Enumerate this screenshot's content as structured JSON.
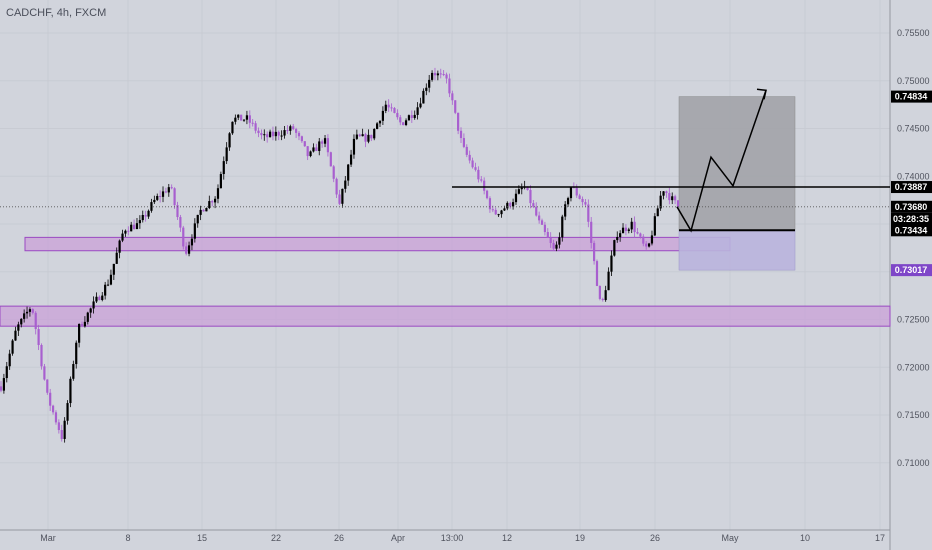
{
  "symbol_label": "CADCHF, 4h, FXCM",
  "colors": {
    "background": "#d1d4dc",
    "bull": "#000000",
    "bear": "#a85fcf",
    "zone_fill": "#c9a2d8",
    "zone_border": "#9a49c2",
    "target_fill": "#a2a3a8",
    "stop_fill": "#b9b4dd",
    "price_badge": "#000000",
    "purple_badge": "#7e46c8"
  },
  "price_badges": [
    {
      "label": "0.74834",
      "color": "black"
    },
    {
      "label": "0.73887",
      "color": "black"
    },
    {
      "label": "0.73680",
      "color": "black"
    },
    {
      "label": "03:28:35",
      "color": "black"
    },
    {
      "label": "0.73434",
      "color": "black"
    },
    {
      "label": "0.73017",
      "color": "purple"
    }
  ],
  "chart_data": {
    "type": "candlestick",
    "y_ticks": [
      "0.75500",
      "0.75000",
      "0.74500",
      "0.74000",
      "0.73500",
      "0.73000",
      "0.72500",
      "0.72000",
      "0.71500",
      "0.71000"
    ],
    "x_ticks": [
      "Mar",
      "8",
      "15",
      "22",
      "26",
      "Apr",
      "13:00",
      "12",
      "19",
      "26",
      "May",
      "10",
      "17"
    ],
    "ylim": [
      0.7075,
      0.7585
    ],
    "close_path": [
      0.718,
      0.724,
      0.7265,
      0.717,
      0.7125,
      0.724,
      0.7265,
      0.729,
      0.7345,
      0.735,
      0.7375,
      0.739,
      0.732,
      0.7365,
      0.738,
      0.746,
      0.746,
      0.744,
      0.7445,
      0.745,
      0.742,
      0.744,
      0.737,
      0.744,
      0.744,
      0.7475,
      0.7455,
      0.747,
      0.751,
      0.75,
      0.743,
      0.74,
      0.736,
      0.737,
      0.739,
      0.735,
      0.732,
      0.739,
      0.737,
      0.726,
      0.734,
      0.735,
      0.732,
      0.7388,
      0.7368
    ],
    "horizontal_levels": [
      0.73887,
      0.73434
    ],
    "zones": [
      {
        "label": "upper_support",
        "from": 0.7322,
        "to": 0.7336
      },
      {
        "label": "lower_support",
        "from": 0.7243,
        "to": 0.7264
      }
    ],
    "position": {
      "entry": 0.73434,
      "target": 0.74834,
      "stop": 0.73017
    },
    "projection_path": [
      0.7368,
      0.7343,
      0.742,
      0.739,
      0.749
    ],
    "current_price": 0.7368
  }
}
